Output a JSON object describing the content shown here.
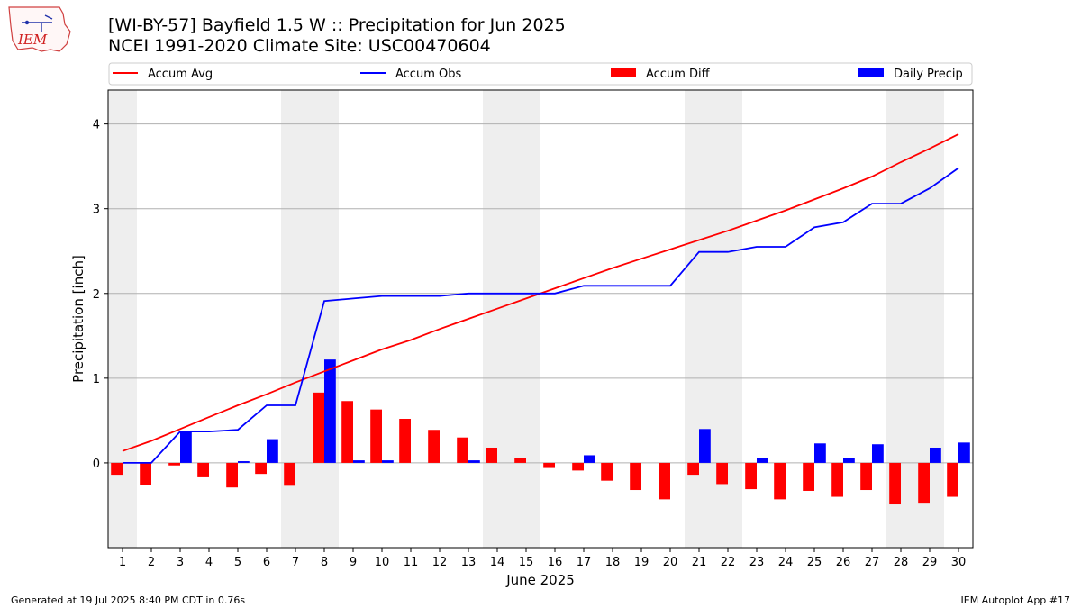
{
  "header": {
    "title": "[WI-BY-57] Bayfield 1.5 W :: Precipitation for Jun 2025",
    "subtitle": "NCEI 1991-2020 Climate Site: USC00470604",
    "logo_text": "IEM"
  },
  "footer": {
    "left": "Generated at 19 Jul 2025 8:40 PM CDT in 0.76s",
    "right": "IEM Autoplot App #17"
  },
  "colors": {
    "avg": "#ff0000",
    "obs": "#0000ff",
    "diff": "#ff0000",
    "daily": "#0000ff",
    "weekend_shade": "#eeeeee",
    "grid": "#b0b0b0"
  },
  "chart_data": {
    "type": "bar",
    "xlabel": "June 2025",
    "ylabel": "Precipitation [inch]",
    "xlim": [
      0.5,
      30.5
    ],
    "ylim": [
      -1.0,
      4.4
    ],
    "yticks": [
      0,
      1,
      2,
      3,
      4
    ],
    "x": [
      1,
      2,
      3,
      4,
      5,
      6,
      7,
      8,
      9,
      10,
      11,
      12,
      13,
      14,
      15,
      16,
      17,
      18,
      19,
      20,
      21,
      22,
      23,
      24,
      25,
      26,
      27,
      28,
      29,
      30
    ],
    "x_tick_labels": [
      "1",
      "2",
      "3",
      "4",
      "5",
      "6",
      "7",
      "8",
      "9",
      "10",
      "11",
      "12",
      "13",
      "14",
      "15",
      "16",
      "17",
      "18",
      "19",
      "20",
      "21",
      "22",
      "23",
      "24",
      "25",
      "26",
      "27",
      "28",
      "29",
      "30"
    ],
    "weekend_spans": [
      [
        0.5,
        1.5
      ],
      [
        6.5,
        8.5
      ],
      [
        13.5,
        15.5
      ],
      [
        20.5,
        22.5
      ],
      [
        27.5,
        29.5
      ]
    ],
    "grid": "y",
    "legend_position": "top",
    "series": [
      {
        "name": "Accum Avg",
        "kind": "line",
        "values": [
          0.14,
          0.26,
          0.4,
          0.54,
          0.68,
          0.81,
          0.95,
          1.08,
          1.21,
          1.34,
          1.45,
          1.58,
          1.7,
          1.82,
          1.94,
          2.06,
          2.18,
          2.3,
          2.41,
          2.52,
          2.63,
          2.74,
          2.86,
          2.98,
          3.11,
          3.24,
          3.38,
          3.55,
          3.71,
          3.88
        ]
      },
      {
        "name": "Accum Obs",
        "kind": "line",
        "values": [
          0.0,
          0.0,
          0.37,
          0.37,
          0.39,
          0.68,
          0.68,
          1.91,
          1.94,
          1.97,
          1.97,
          1.97,
          2.0,
          2.0,
          2.0,
          2.0,
          2.09,
          2.09,
          2.09,
          2.09,
          2.49,
          2.49,
          2.55,
          2.55,
          2.78,
          2.84,
          3.06,
          3.06,
          3.24,
          3.48
        ]
      },
      {
        "name": "Accum Diff",
        "kind": "bar",
        "offset": -0.2,
        "values": [
          -0.14,
          -0.26,
          -0.03,
          -0.17,
          -0.29,
          -0.13,
          -0.27,
          0.83,
          0.73,
          0.63,
          0.52,
          0.39,
          0.3,
          0.18,
          0.06,
          -0.06,
          -0.09,
          -0.21,
          -0.32,
          -0.43,
          -0.14,
          -0.25,
          -0.31,
          -0.43,
          -0.33,
          -0.4,
          -0.32,
          -0.49,
          -0.47,
          -0.4
        ]
      },
      {
        "name": "Daily Precip",
        "kind": "bar",
        "offset": 0.2,
        "values": [
          0.0,
          0.0,
          0.37,
          0.0,
          0.02,
          0.28,
          0.0,
          1.22,
          0.03,
          0.03,
          0.0,
          0.0,
          0.03,
          0.0,
          0.0,
          0.0,
          0.09,
          0.0,
          0.0,
          0.0,
          0.4,
          0.0,
          0.06,
          0.0,
          0.23,
          0.06,
          0.22,
          0.0,
          0.18,
          0.24
        ]
      }
    ]
  }
}
